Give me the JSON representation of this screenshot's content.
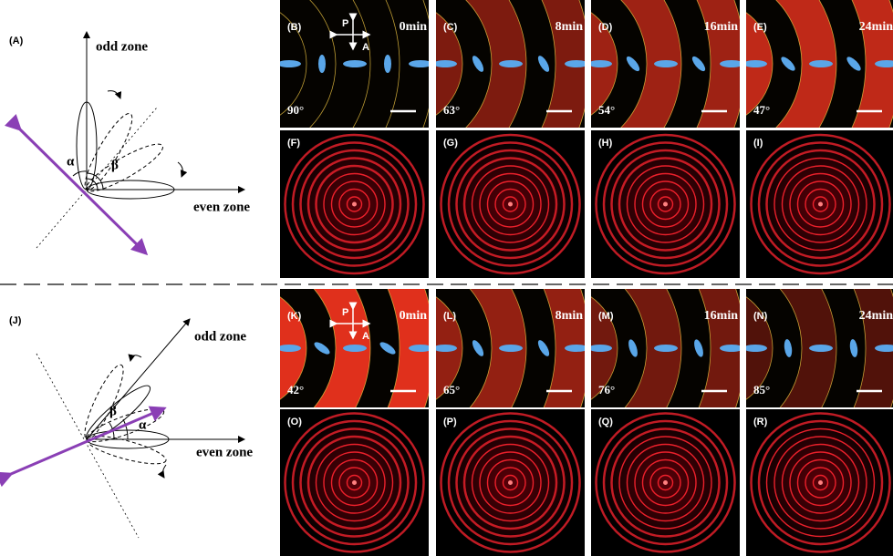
{
  "top": {
    "diagram": {
      "label": "(A)",
      "odd_zone": "odd zone",
      "even_zone": "even zone",
      "alpha": "α",
      "beta": "β"
    },
    "polarizer": {
      "p": "P",
      "a": "A"
    },
    "micrographs": [
      {
        "label": "(B)",
        "time": "0min",
        "angle": "90°"
      },
      {
        "label": "(C)",
        "time": "8min",
        "angle": "63°"
      },
      {
        "label": "(D)",
        "time": "16min",
        "angle": "54°"
      },
      {
        "label": "(E)",
        "time": "24min",
        "angle": "47°"
      }
    ],
    "patterns": [
      {
        "label": "(F)"
      },
      {
        "label": "(G)"
      },
      {
        "label": "(H)"
      },
      {
        "label": "(I)"
      }
    ]
  },
  "bottom": {
    "diagram": {
      "label": "(J)",
      "odd_zone": "odd zone",
      "even_zone": "even zone",
      "alpha": "α",
      "beta": "β"
    },
    "polarizer": {
      "p": "P",
      "a": "A"
    },
    "micrographs": [
      {
        "label": "(K)",
        "time": "0min",
        "angle": "42°"
      },
      {
        "label": "(L)",
        "time": "8min",
        "angle": "65°"
      },
      {
        "label": "(M)",
        "time": "16min",
        "angle": "76°"
      },
      {
        "label": "(N)",
        "time": "24min",
        "angle": "85°"
      }
    ],
    "patterns": [
      {
        "label": "(O)"
      },
      {
        "label": "(P)"
      },
      {
        "label": "(Q)"
      },
      {
        "label": "(R)"
      }
    ]
  }
}
